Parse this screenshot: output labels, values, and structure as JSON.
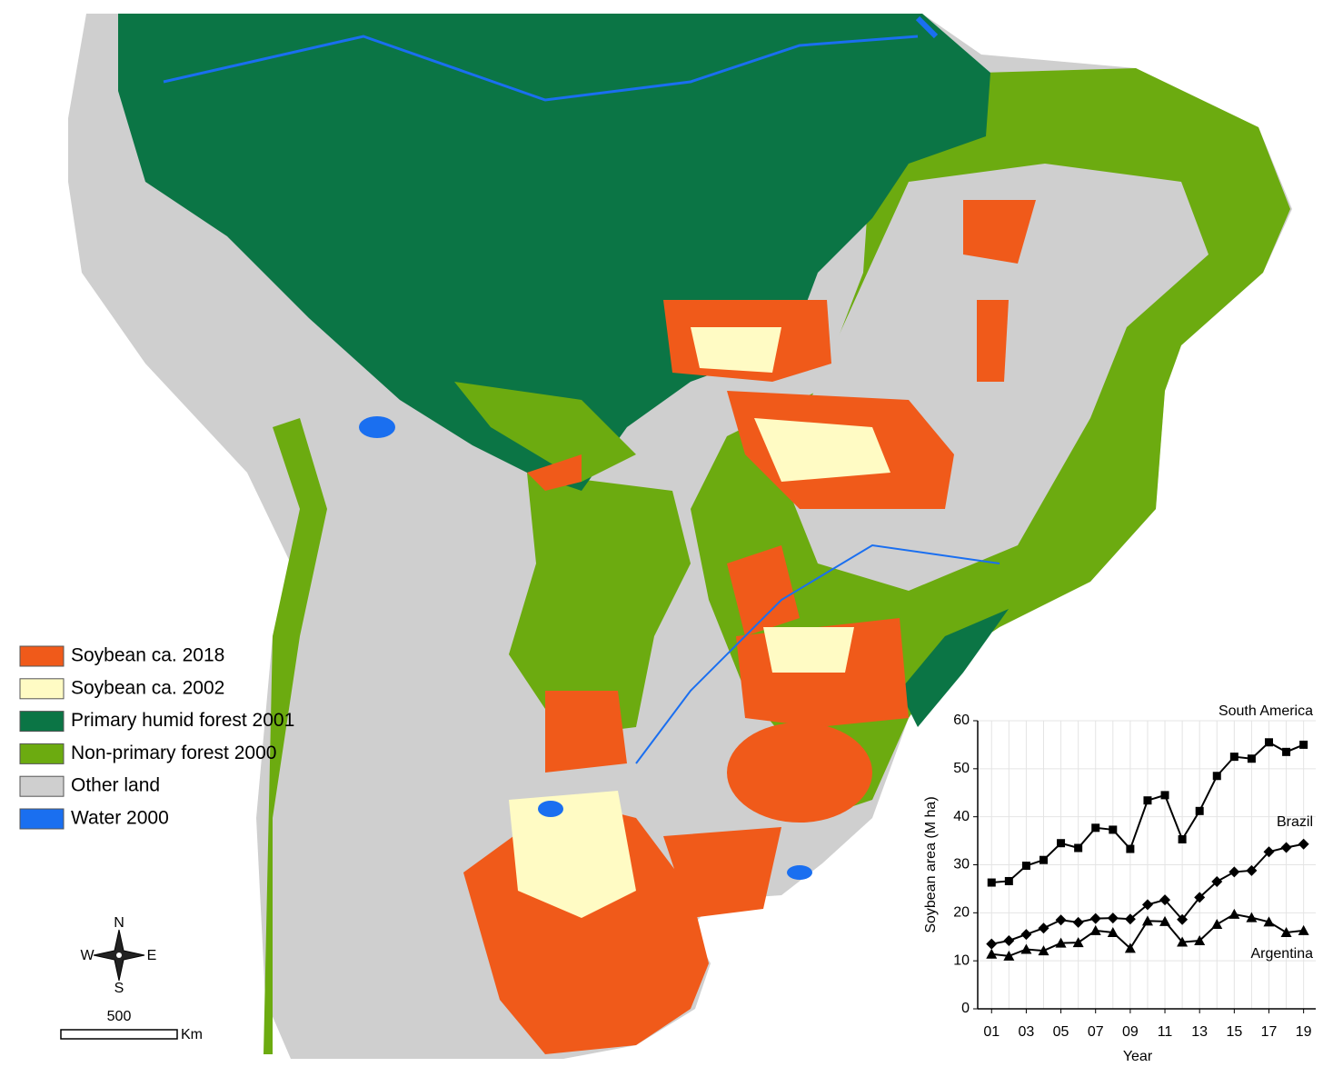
{
  "map": {
    "legend": [
      {
        "label": "Soybean ca. 2018",
        "color": "#f05a1a"
      },
      {
        "label": "Soybean ca. 2002",
        "color": "#fffbc4"
      },
      {
        "label": "Primary humid forest 2001",
        "color": "#0b7545"
      },
      {
        "label": "Non-primary forest 2000",
        "color": "#6cab10"
      },
      {
        "label": "Other land",
        "color": "#cfcfcf"
      },
      {
        "label": "Water 2000",
        "color": "#1a6ff0"
      }
    ],
    "compass": {
      "north": "N",
      "east": "E",
      "south": "S",
      "west": "W"
    },
    "scale_bar": {
      "length": 500,
      "unit": "Km"
    }
  },
  "chart_data": {
    "type": "line",
    "x_label": "Year",
    "y_label": "Soybean area (M ha)",
    "x": [
      1,
      2,
      3,
      4,
      5,
      6,
      7,
      8,
      9,
      10,
      11,
      12,
      13,
      14,
      15,
      16,
      17,
      18,
      19
    ],
    "series": [
      {
        "name": "South America",
        "color": "#000000",
        "marker": "square",
        "values": [
          26.3,
          26.6,
          29.8,
          31.0,
          34.5,
          33.5,
          37.7,
          37.3,
          33.3,
          43.4,
          44.5,
          35.3,
          41.2,
          48.5,
          52.5,
          52.1,
          55.5,
          53.5,
          55.0
        ]
      },
      {
        "name": "Brazil",
        "color": "#000000",
        "marker": "diamond",
        "values": [
          13.5,
          14.2,
          15.5,
          16.8,
          18.5,
          18.0,
          18.8,
          18.9,
          18.7,
          21.7,
          22.7,
          18.6,
          23.2,
          26.5,
          28.5,
          28.8,
          32.7,
          33.6,
          34.3
        ]
      },
      {
        "name": "Argentina",
        "color": "#000000",
        "marker": "triangle",
        "values": [
          11.4,
          11.0,
          12.4,
          12.1,
          13.7,
          13.8,
          16.3,
          15.9,
          12.6,
          18.3,
          18.2,
          13.9,
          14.2,
          17.6,
          19.7,
          19.0,
          18.1,
          15.9,
          16.3
        ]
      }
    ],
    "xlim": [
      0.2,
      19.7
    ],
    "ylim": [
      0,
      60
    ],
    "xticks": [
      {
        "value": 1,
        "label": "01"
      },
      {
        "value": 3,
        "label": "03"
      },
      {
        "value": 5,
        "label": "05"
      },
      {
        "value": 7,
        "label": "07"
      },
      {
        "value": 9,
        "label": "09"
      },
      11,
      13,
      15,
      17,
      19
    ],
    "yticks": [
      0,
      10,
      20,
      30,
      40,
      50,
      60
    ],
    "grid": true
  }
}
